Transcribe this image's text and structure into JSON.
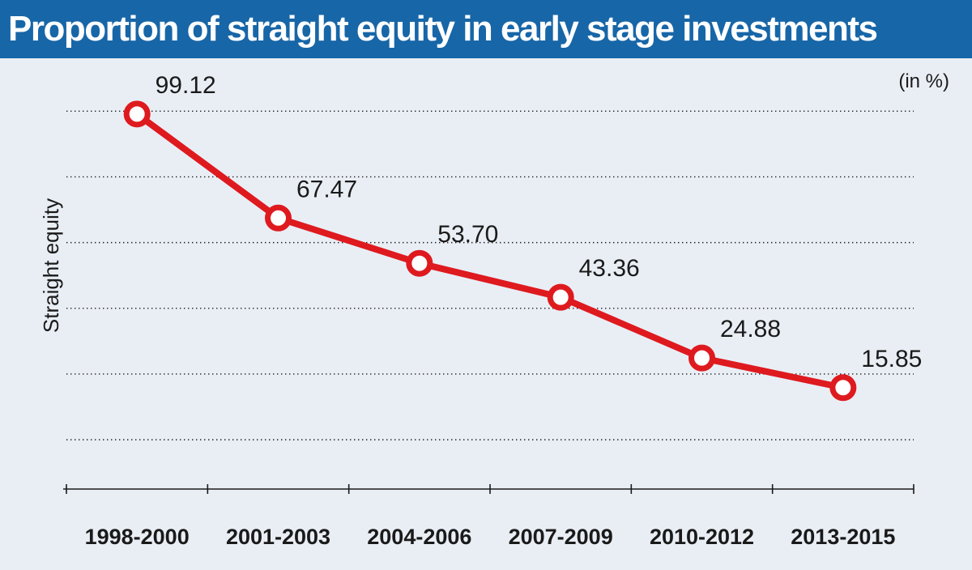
{
  "title": "Proportion of straight equity in early stage investments",
  "colors": {
    "title_bar": "#1766a8",
    "background": "#e9eef5",
    "line": "#de1a1f",
    "marker_fill": "#ffffff"
  },
  "chart_data": {
    "type": "line",
    "title": "Proportion of straight equity in early stage investments",
    "unit": "(in %)",
    "xlabel": "",
    "ylabel": "Straight equity",
    "categories": [
      "1998-2000",
      "2001-2003",
      "2004-2006",
      "2007-2009",
      "2010-2012",
      "2013-2015"
    ],
    "series": [
      {
        "values": [
          99.12,
          67.47,
          53.7,
          43.36,
          24.88,
          15.85
        ]
      }
    ],
    "data_labels": [
      "99.12",
      "67.47",
      "53.70",
      "43.36",
      "24.88",
      "15.85"
    ],
    "ylim": [
      -15,
      105
    ],
    "grid": true,
    "legend": "none"
  }
}
